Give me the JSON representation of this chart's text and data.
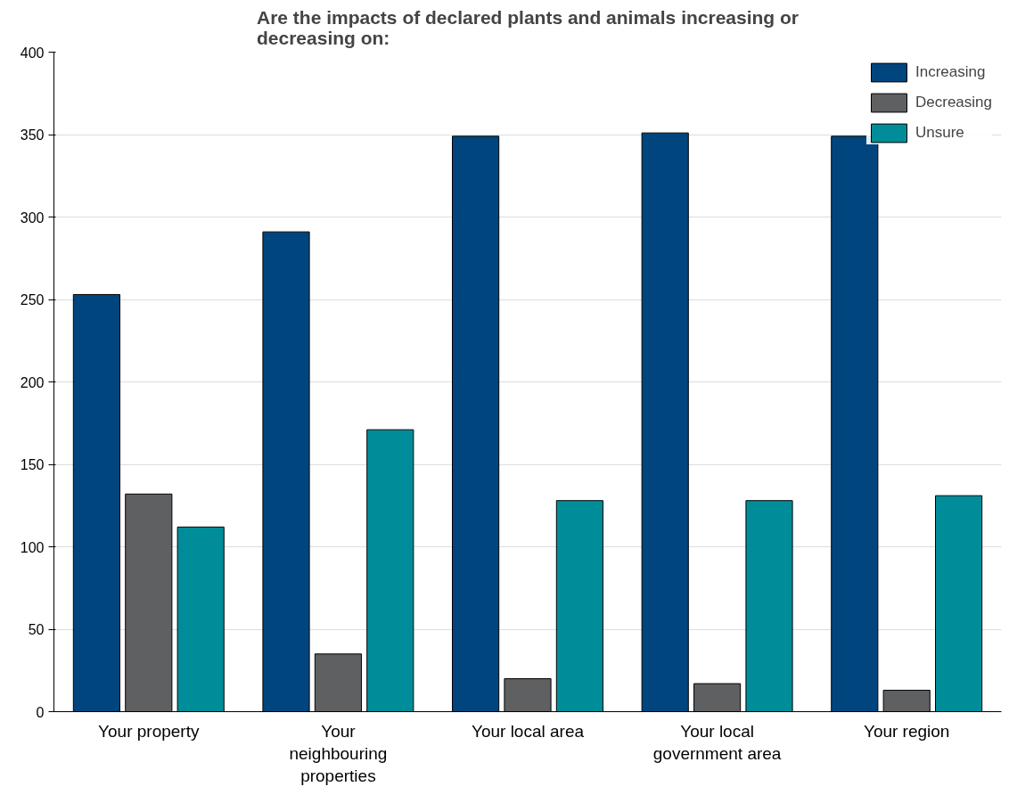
{
  "chart_data": {
    "type": "bar",
    "title": "Are the impacts of declared plants and animals increasing or decreasing on:",
    "categories": [
      "Your property",
      "Your neighbouring properties",
      "Your local area",
      "Your local government area",
      "Your region"
    ],
    "series": [
      {
        "name": "Increasing",
        "color": "#00457e",
        "values": [
          253,
          291,
          349,
          351,
          349
        ]
      },
      {
        "name": "Decreasing",
        "color": "#5f6062",
        "values": [
          132,
          35,
          20,
          17,
          13
        ]
      },
      {
        "name": "Unsure",
        "color": "#008d99",
        "values": [
          112,
          171,
          128,
          128,
          131
        ]
      }
    ],
    "ylim": [
      0,
      400
    ],
    "yticks": [
      0,
      50,
      100,
      150,
      200,
      250,
      300,
      350,
      400
    ],
    "grid": "y",
    "legend": "top right"
  }
}
